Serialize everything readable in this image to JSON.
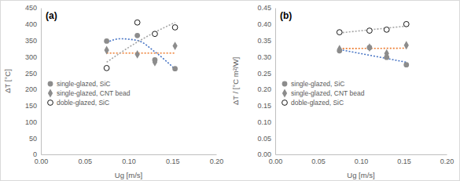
{
  "chart_data": [
    {
      "type": "scatter",
      "title": "(a)",
      "x_label": "Ug [m/s]",
      "y_label": "ΔT [°C]",
      "xlim": [
        0,
        0.2
      ],
      "xticks": [
        {
          "value": 0,
          "label": "0.00"
        },
        {
          "value": 0.05,
          "label": "0.05"
        },
        {
          "value": 0.1,
          "label": "0.10"
        },
        {
          "value": 0.15,
          "label": "0.15"
        },
        {
          "value": 0.2,
          "label": "0.20"
        }
      ],
      "ylim": [
        0,
        450
      ],
      "yticks": [
        0,
        50,
        100,
        150,
        200,
        250,
        300,
        350,
        400,
        450
      ],
      "legend": "lower left",
      "series": [
        {
          "name": "single-glazed, SiC",
          "color": "#8c8c8c",
          "marker": "circle",
          "x": [
            0.075,
            0.11,
            0.13,
            0.153
          ],
          "values": [
            348,
            365,
            290,
            263
          ]
        },
        {
          "name": "single-glazed, CNT bead",
          "color": "#8c8c8c",
          "marker": "diamond",
          "x": [
            0.075,
            0.11,
            0.13,
            0.153
          ],
          "values": [
            320,
            307,
            283,
            333
          ]
        },
        {
          "name": "doble-glazed, SiC",
          "color": "#000000",
          "marker": "circle-open",
          "x": [
            0.075,
            0.11,
            0.13,
            0.153
          ],
          "values": [
            265,
            405,
            370,
            390
          ]
        },
        {
          "type": "line",
          "line_style": "dotted",
          "color": "#4472c4",
          "x": [
            0.075,
            0.09,
            0.11,
            0.13,
            0.153
          ],
          "values": [
            343,
            355,
            350,
            315,
            262
          ]
        },
        {
          "type": "line",
          "line_style": "dotted",
          "color": "#ed7d31",
          "x": [
            0.075,
            0.153
          ],
          "values": [
            311,
            311
          ]
        },
        {
          "type": "line",
          "line_style": "dotted",
          "color": "#a5a5a5",
          "x": [
            0.075,
            0.11,
            0.13,
            0.153
          ],
          "values": [
            283,
            345,
            375,
            405
          ]
        }
      ]
    },
    {
      "type": "scatter",
      "title": "(b)",
      "x_label": "Ug [m/s]",
      "y_label": "ΔT / [°C m²/W]",
      "xlim": [
        0,
        0.2
      ],
      "xticks": [
        {
          "value": 0,
          "label": "0.00"
        },
        {
          "value": 0.05,
          "label": "0.05"
        },
        {
          "value": 0.1,
          "label": "0.10"
        },
        {
          "value": 0.15,
          "label": "0.15"
        },
        {
          "value": 0.2,
          "label": "0.20"
        }
      ],
      "ylim": [
        0,
        0.45
      ],
      "yticks": [
        {
          "value": 0,
          "label": "0.00"
        },
        {
          "value": 0.05,
          "label": "0.05"
        },
        {
          "value": 0.1,
          "label": "0.10"
        },
        {
          "value": 0.15,
          "label": "0.15"
        },
        {
          "value": 0.2,
          "label": "0.20"
        },
        {
          "value": 0.25,
          "label": "0.25"
        },
        {
          "value": 0.3,
          "label": "0.30"
        },
        {
          "value": 0.35,
          "label": "0.35"
        },
        {
          "value": 0.4,
          "label": "0.40"
        },
        {
          "value": 0.45,
          "label": "0.45"
        }
      ],
      "legend": "lower left",
      "series": [
        {
          "name": "single-glazed, SiC",
          "color": "#8c8c8c",
          "marker": "circle",
          "x": [
            0.075,
            0.11,
            0.13,
            0.153
          ],
          "values": [
            0.318,
            0.328,
            0.298,
            0.275
          ]
        },
        {
          "name": "single-glazed, CNT bead",
          "color": "#8c8c8c",
          "marker": "diamond",
          "x": [
            0.075,
            0.11,
            0.13,
            0.153
          ],
          "values": [
            0.323,
            0.328,
            0.31,
            0.335
          ]
        },
        {
          "name": "doble-glazed, SiC",
          "color": "#000000",
          "marker": "circle-open",
          "x": [
            0.075,
            0.11,
            0.13,
            0.153
          ],
          "values": [
            0.375,
            0.38,
            0.383,
            0.4
          ]
        },
        {
          "type": "line",
          "line_style": "dotted",
          "color": "#4472c4",
          "x": [
            0.075,
            0.153
          ],
          "values": [
            0.322,
            0.283
          ]
        },
        {
          "type": "line",
          "line_style": "dotted",
          "color": "#ed7d31",
          "x": [
            0.075,
            0.153
          ],
          "values": [
            0.325,
            0.326
          ]
        },
        {
          "type": "line",
          "line_style": "dotted",
          "color": "#a5a5a5",
          "x": [
            0.075,
            0.153
          ],
          "values": [
            0.373,
            0.394
          ]
        }
      ]
    }
  ]
}
